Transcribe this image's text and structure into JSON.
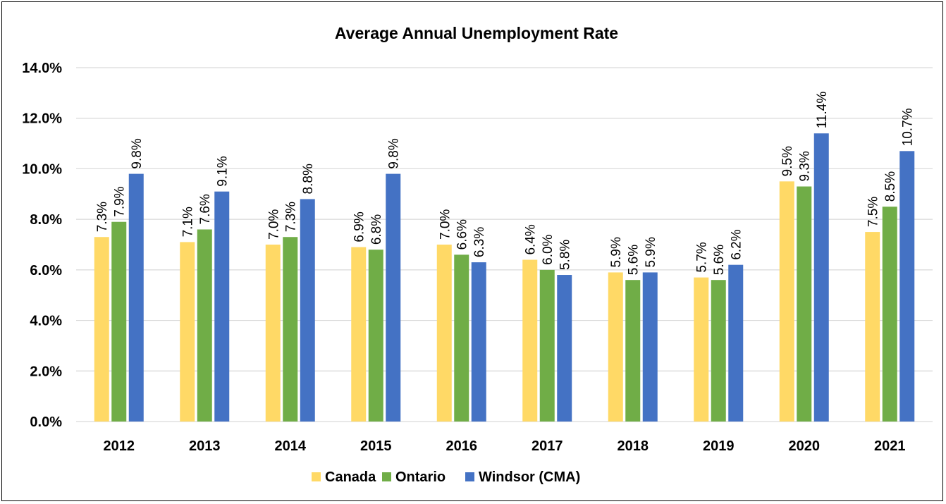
{
  "chart_data": {
    "type": "bar",
    "title": "Average Annual Unemployment Rate",
    "categories": [
      "2012",
      "2013",
      "2014",
      "2015",
      "2016",
      "2017",
      "2018",
      "2019",
      "2020",
      "2021"
    ],
    "series": [
      {
        "name": "Canada",
        "color": "#FFD966",
        "values": [
          7.3,
          7.1,
          7.0,
          6.9,
          7.0,
          6.4,
          5.9,
          5.7,
          9.5,
          7.5
        ],
        "labels": [
          "7.3%",
          "7.1%",
          "7.0%",
          "6.9%",
          "7.0%",
          "6.4%",
          "5.9%",
          "5.7%",
          "9.5%",
          "7.5%"
        ]
      },
      {
        "name": "Ontario",
        "color": "#70AD47",
        "values": [
          7.9,
          7.6,
          7.3,
          6.8,
          6.6,
          6.0,
          5.6,
          5.6,
          9.3,
          8.5
        ],
        "labels": [
          "7.9%",
          "7.6%",
          "7.3%",
          "6.8%",
          "6.6%",
          "6.0%",
          "5.6%",
          "5.6%",
          "9.3%",
          "8.5%"
        ]
      },
      {
        "name": "Windsor (CMA)",
        "color": "#4472C4",
        "values": [
          9.8,
          9.1,
          8.8,
          9.8,
          6.3,
          5.8,
          5.9,
          6.2,
          11.4,
          10.7
        ],
        "labels": [
          "9.8%",
          "9.1%",
          "8.8%",
          "9.8%",
          "6.3%",
          "5.8%",
          "5.9%",
          "6.2%",
          "11.4%",
          "10.7%"
        ]
      }
    ],
    "ylim": [
      0,
      14
    ],
    "yticks": [
      0,
      2,
      4,
      6,
      8,
      10,
      12,
      14
    ],
    "ytick_labels": [
      "0.0%",
      "2.0%",
      "4.0%",
      "6.0%",
      "8.0%",
      "10.0%",
      "12.0%",
      "14.0%"
    ],
    "grid": true,
    "legend_position": "bottom"
  }
}
